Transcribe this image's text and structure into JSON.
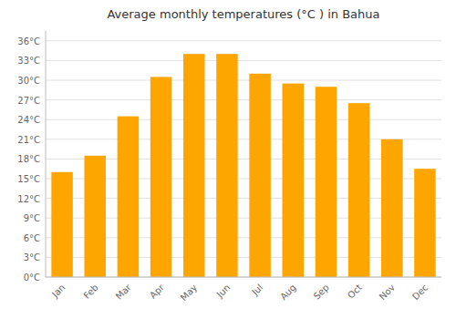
{
  "chart_data": {
    "type": "bar",
    "title": "Average monthly temperatures (°C ) in Bahua",
    "categories": [
      "Jan",
      "Feb",
      "Mar",
      "Apr",
      "May",
      "Jun",
      "Jul",
      "Aug",
      "Sep",
      "Oct",
      "Nov",
      "Dec"
    ],
    "values": [
      16,
      18.5,
      24.5,
      30.5,
      34,
      34,
      31,
      29.5,
      29,
      26.5,
      21,
      16.5
    ],
    "color": "#FFA500",
    "ylim": [
      0,
      37.5
    ],
    "yticks": [
      {
        "value": 0,
        "label": "0°C"
      },
      {
        "value": 3,
        "label": "3°C"
      },
      {
        "value": 6,
        "label": "6°C"
      },
      {
        "value": 9,
        "label": "9°C"
      },
      {
        "value": 12,
        "label": "12°C"
      },
      {
        "value": 15,
        "label": "15°C"
      },
      {
        "value": 18,
        "label": "18°C"
      },
      {
        "value": 21,
        "label": "21°C"
      },
      {
        "value": 24,
        "label": "24°C"
      },
      {
        "value": 27,
        "label": "27°C"
      },
      {
        "value": 30,
        "label": "30°C"
      },
      {
        "value": 33,
        "label": "33°C"
      },
      {
        "value": 36,
        "label": "36°C"
      }
    ],
    "grid": true
  }
}
